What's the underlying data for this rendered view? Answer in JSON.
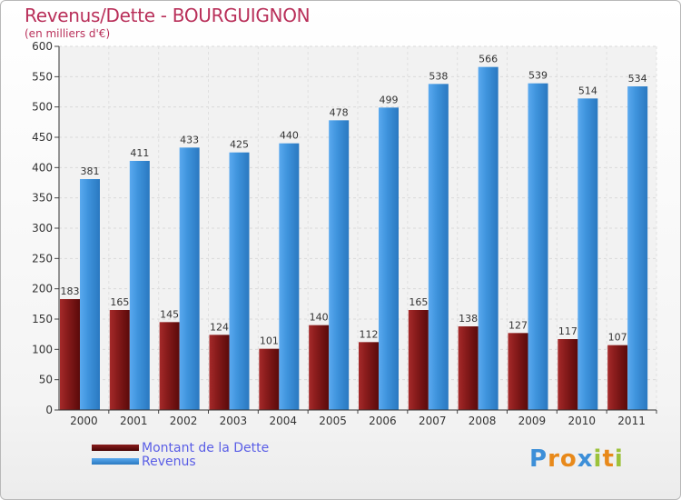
{
  "chart_data": {
    "type": "bar",
    "title": "Revenus/Dette - BOURGUIGNON",
    "subtitle": "(en milliers d'€)",
    "categories": [
      "2000",
      "2001",
      "2002",
      "2003",
      "2004",
      "2005",
      "2006",
      "2007",
      "2008",
      "2009",
      "2010",
      "2011"
    ],
    "series": [
      {
        "name": "Montant de la Dette",
        "color": "#6b1010",
        "values": [
          183,
          165,
          145,
          124,
          101,
          140,
          112,
          165,
          138,
          127,
          117,
          107
        ]
      },
      {
        "name": "Revenus",
        "color": "#3d8fd8",
        "values": [
          381,
          411,
          433,
          425,
          440,
          478,
          499,
          538,
          566,
          539,
          514,
          534
        ]
      }
    ],
    "ylim": [
      0,
      600
    ],
    "yticks": [
      0,
      50,
      100,
      150,
      200,
      250,
      300,
      350,
      400,
      450,
      500,
      550,
      600
    ],
    "grid": true,
    "legend": "bottom-left"
  },
  "logo": {
    "letters": [
      "P",
      "r",
      "o",
      "x",
      "i",
      "t",
      "i"
    ]
  }
}
